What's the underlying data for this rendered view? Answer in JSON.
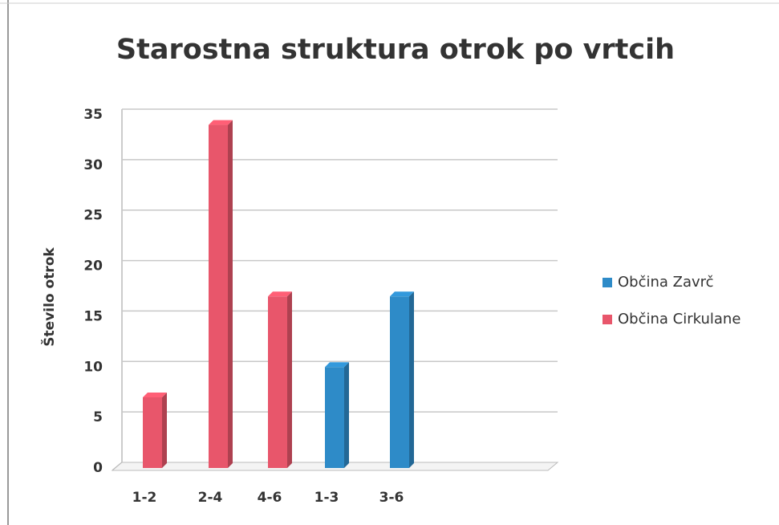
{
  "chart_data": {
    "type": "bar3d",
    "title": "Starostna struktura otrok po vrtcih",
    "y_label": "Število otrok",
    "categories": [
      "1-2",
      "2-4",
      "4-6",
      "1-3",
      "3-6"
    ],
    "series": [
      {
        "name": "Občina Zavrč",
        "color": "#2e8bc8",
        "values": [
          null,
          null,
          null,
          10,
          17
        ]
      },
      {
        "name": "Občina Cirkulane",
        "color": "#e8566b",
        "values": [
          7,
          34,
          17,
          null,
          null
        ]
      }
    ],
    "ylim": [
      0,
      35
    ],
    "yticks": [
      0,
      5,
      10,
      15,
      20,
      25,
      30,
      35
    ],
    "grid": true,
    "legend": "right"
  }
}
